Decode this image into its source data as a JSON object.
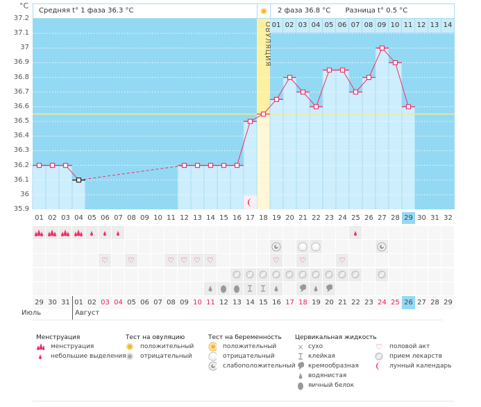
{
  "header": {
    "unit": "°C",
    "phase1_label": "Средняя t° 1 фаза 36.3 °C",
    "phase2_label": "2 фаза 36.8 °C",
    "difference_label": "Разница t° 0.5 °C",
    "ovulation_label": "ОВУЛЯЦИЯ",
    "luteal_days": [
      "01",
      "02",
      "03",
      "04",
      "05",
      "06",
      "07",
      "08",
      "09",
      "10",
      "11",
      "12",
      "13",
      "14"
    ]
  },
  "chart_data": {
    "type": "line",
    "ylim": [
      35.9,
      37.2
    ],
    "yticks": [
      "37.2",
      "37.1",
      "37",
      "36.9",
      "36.8",
      "36.7",
      "36.6",
      "36.5",
      "36.4",
      "36.3",
      "36.2",
      "36.1",
      "36",
      "35.9"
    ],
    "grid": true,
    "cycle_days": [
      "01",
      "02",
      "03",
      "04",
      "05",
      "06",
      "07",
      "08",
      "09",
      "10",
      "11",
      "12",
      "13",
      "14",
      "15",
      "16",
      "17",
      "18",
      "19",
      "20",
      "21",
      "22",
      "23",
      "24",
      "25",
      "26",
      "27",
      "28",
      "29",
      "30",
      "31",
      "32"
    ],
    "temperatures": [
      36.2,
      36.2,
      36.2,
      36.1,
      null,
      null,
      null,
      null,
      null,
      null,
      null,
      36.2,
      36.2,
      36.2,
      36.2,
      36.2,
      36.5,
      36.55,
      36.65,
      36.8,
      36.7,
      36.6,
      36.85,
      36.85,
      36.7,
      36.8,
      37.0,
      36.9,
      36.6,
      null,
      null,
      null
    ],
    "coverline": 36.55,
    "ovulation_day": 18,
    "current_day": 29,
    "moon_day": 17,
    "line_color": "#f0306a",
    "background_color": "#94d9f3",
    "bar_color": "#cdeefc",
    "ovulation_color": "#fdf0a0"
  },
  "calendar": {
    "dates": [
      "29",
      "30",
      "31",
      "01",
      "02",
      "03",
      "04",
      "05",
      "06",
      "07",
      "08",
      "09",
      "10",
      "11",
      "12",
      "13",
      "14",
      "15",
      "16",
      "17",
      "18",
      "19",
      "20",
      "21",
      "22",
      "23",
      "24",
      "25",
      "26",
      "27",
      "28",
      "29"
    ],
    "weekend_indices": [
      5,
      6,
      12,
      13,
      19,
      20,
      26,
      27
    ],
    "current_index": 28,
    "months": [
      "Июль",
      "Август"
    ]
  },
  "rows": {
    "menstruation": {
      "1": "heavy",
      "2": "heavy",
      "3": "heavy",
      "4": "heavy",
      "5": "light",
      "6": "light",
      "7": "light",
      "25": "light"
    },
    "pregnancy_test": {
      "19": "weak",
      "21": "negative",
      "22": "negative",
      "27": "weak"
    },
    "intercourse": {
      "6": "heart",
      "8": "heart",
      "11": "heart",
      "12": "heart",
      "13": "heart",
      "14": "heart",
      "19": "heart",
      "21": "heart",
      "24": "heart"
    },
    "medication": {
      "16": "pill",
      "17": "pill",
      "18": "pill",
      "19": "pill",
      "20": "pill",
      "21": "pill",
      "22": "pill",
      "23": "pill",
      "24": "pill",
      "25": "pill",
      "27": "pill"
    },
    "cervical_fluid": {
      "14": "watery",
      "15": "eggwhite",
      "16": "eggwhite",
      "17": "sticky",
      "18": "sticky",
      "19": "watery",
      "21": "creamy",
      "22": "watery",
      "23": "creamy"
    }
  },
  "legend": {
    "menstruation": {
      "title": "Менструация",
      "items": [
        {
          "icon": "heavy",
          "label": "менструация"
        },
        {
          "icon": "light",
          "label": "небольшие выделения"
        }
      ]
    },
    "ovulation_test": {
      "title": "Тест на овуляцию",
      "items": [
        {
          "icon": "ovpos",
          "label": "положительный"
        },
        {
          "icon": "ovneg",
          "label": "отрицательный"
        }
      ]
    },
    "pregnancy_test": {
      "title": "Тест на беременность",
      "items": [
        {
          "icon": "pregpos",
          "label": "положительный"
        },
        {
          "icon": "negative",
          "label": "отрицательный"
        },
        {
          "icon": "weak",
          "label": "слабоположительный"
        }
      ]
    },
    "cervical_fluid": {
      "title": "Цервикальная жидкость",
      "items": [
        {
          "icon": "dry",
          "label": "сухо"
        },
        {
          "icon": "sticky",
          "label": "клейкая"
        },
        {
          "icon": "creamy",
          "label": "кремообразная"
        },
        {
          "icon": "watery",
          "label": "водянистая"
        },
        {
          "icon": "eggwhite",
          "label": "яичный белок"
        }
      ]
    },
    "other": {
      "items": [
        {
          "icon": "heart",
          "label": "половой акт"
        },
        {
          "icon": "pill",
          "label": "прием лекарств"
        },
        {
          "icon": "moon",
          "label": "лунный календарь"
        }
      ]
    }
  }
}
